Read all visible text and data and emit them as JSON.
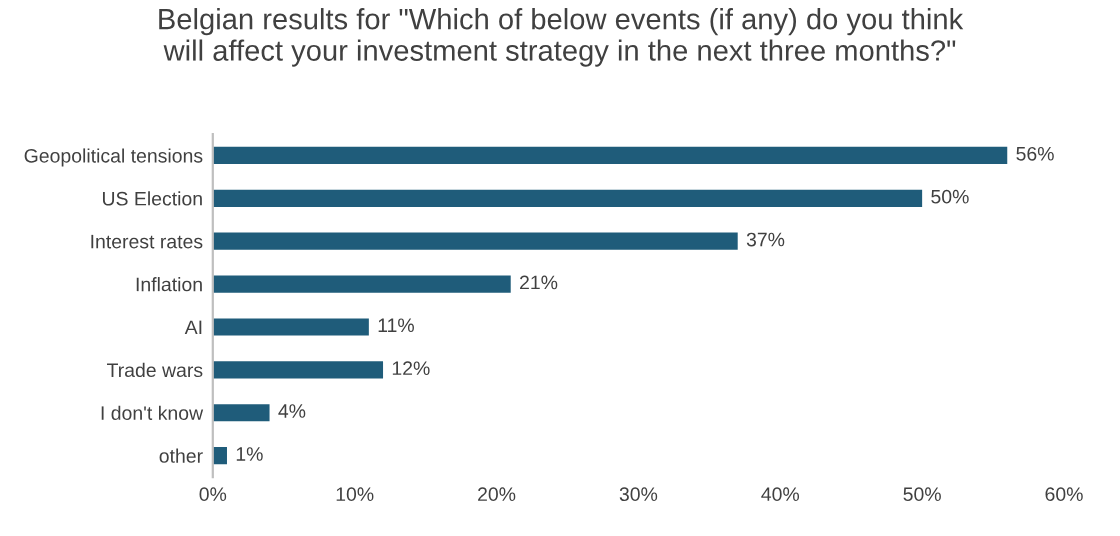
{
  "chart_data": {
    "type": "bar",
    "orientation": "horizontal",
    "title": "Belgian results for \"Which of below events (if any) do you think\nwill affect your investment strategy in the next three months?\"",
    "categories": [
      "Geopolitical tensions",
      "US Election",
      "Interest rates",
      "Inflation",
      "AI",
      "Trade wars",
      "I don't know",
      "other"
    ],
    "values": [
      56,
      50,
      37,
      21,
      11,
      12,
      4,
      1
    ],
    "value_labels": [
      "56%",
      "50%",
      "37%",
      "21%",
      "11%",
      "12%",
      "4%",
      "1%"
    ],
    "color": "#1f5c7a",
    "xlim": [
      0,
      60
    ],
    "xticks": [
      {
        "value": 0,
        "label": "0%"
      },
      {
        "value": 10,
        "label": "10%"
      },
      {
        "value": 20,
        "label": "20%"
      },
      {
        "value": 30,
        "label": "30%"
      },
      {
        "value": 40,
        "label": "40%"
      },
      {
        "value": 50,
        "label": "50%"
      },
      {
        "value": 60,
        "label": "60%"
      }
    ],
    "grid": false
  }
}
